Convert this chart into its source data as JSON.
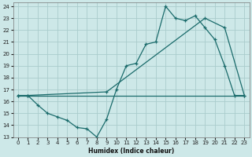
{
  "xlabel": "Humidex (Indice chaleur)",
  "bg_color": "#cde8e8",
  "grid_color": "#aacccc",
  "line_color": "#1a6b6b",
  "xlim": [
    -0.5,
    23.5
  ],
  "ylim": [
    13,
    24.3
  ],
  "xticks": [
    0,
    1,
    2,
    3,
    4,
    5,
    6,
    7,
    8,
    9,
    10,
    11,
    12,
    13,
    14,
    15,
    16,
    17,
    18,
    19,
    20,
    21,
    22,
    23
  ],
  "yticks": [
    13,
    14,
    15,
    16,
    17,
    18,
    19,
    20,
    21,
    22,
    23,
    24
  ],
  "curve1_x": [
    0,
    1,
    2,
    3,
    4,
    5,
    6,
    7,
    8,
    9,
    10,
    11,
    12,
    13,
    14,
    15,
    16,
    17,
    18,
    19,
    20,
    21,
    22,
    23
  ],
  "curve1_y": [
    16.5,
    16.5,
    15.7,
    15.0,
    14.7,
    14.4,
    13.8,
    13.7,
    13.0,
    14.5,
    17.0,
    19.0,
    19.2,
    20.8,
    21.0,
    24.0,
    23.0,
    22.8,
    23.2,
    22.2,
    21.2,
    19.0,
    16.5,
    16.5
  ],
  "curve2_x": [
    0,
    1,
    9,
    19,
    21,
    23
  ],
  "curve2_y": [
    16.5,
    16.5,
    16.8,
    23.0,
    22.2,
    16.5
  ],
  "curve3_x": [
    0,
    1,
    2,
    3,
    4,
    5,
    6,
    7,
    8,
    9,
    10,
    11,
    12,
    13,
    14,
    15,
    16,
    17,
    18,
    19,
    20,
    21,
    22,
    23
  ],
  "curve3_y": [
    16.5,
    16.5,
    16.5,
    16.5,
    16.5,
    16.5,
    16.5,
    16.5,
    16.5,
    16.5,
    16.5,
    16.5,
    16.5,
    16.5,
    16.5,
    16.5,
    16.5,
    16.5,
    16.5,
    16.5,
    16.5,
    16.5,
    16.5,
    16.5
  ]
}
